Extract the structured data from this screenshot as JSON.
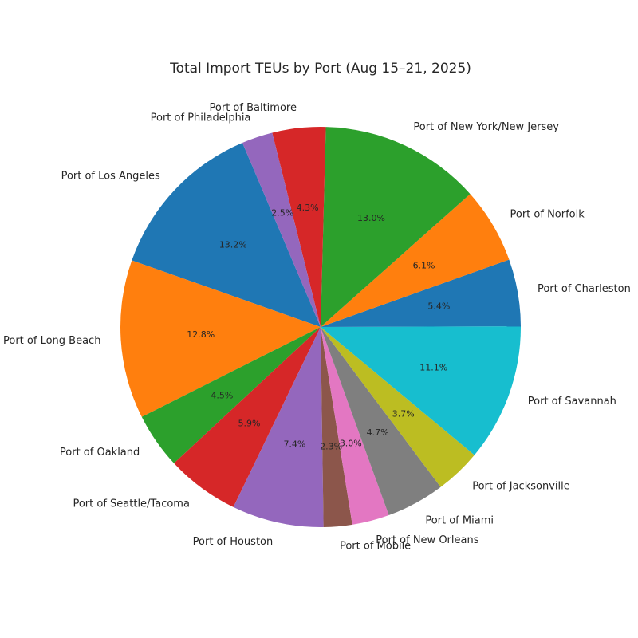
{
  "chart_data": {
    "type": "pie",
    "title": "Total Import TEUs by Port (Aug 15–21, 2025)",
    "start_angle_deg": 113,
    "direction": "counterclockwise",
    "slices": [
      {
        "label": "Port of Los Angeles",
        "percent": 13.2,
        "pct_text": "13.2%",
        "color": "#1f77b4"
      },
      {
        "label": "Port of Long Beach",
        "percent": 12.8,
        "pct_text": "12.8%",
        "color": "#ff7f0e"
      },
      {
        "label": "Port of Oakland",
        "percent": 4.5,
        "pct_text": "4.5%",
        "color": "#2ca02c"
      },
      {
        "label": "Port of Seattle/Tacoma",
        "percent": 5.9,
        "pct_text": "5.9%",
        "color": "#d62728"
      },
      {
        "label": "Port of Houston",
        "percent": 7.4,
        "pct_text": "7.4%",
        "color": "#9467bd"
      },
      {
        "label": "Port of Mobile",
        "percent": 2.3,
        "pct_text": "2.3%",
        "color": "#8c564b"
      },
      {
        "label": "Port of New Orleans",
        "percent": 3.0,
        "pct_text": "3.0%",
        "color": "#e377c2"
      },
      {
        "label": "Port of Miami",
        "percent": 4.7,
        "pct_text": "4.7%",
        "color": "#7f7f7f"
      },
      {
        "label": "Port of Jacksonville",
        "percent": 3.7,
        "pct_text": "3.7%",
        "color": "#bcbd22"
      },
      {
        "label": "Port of Savannah",
        "percent": 11.1,
        "pct_text": "11.1%",
        "color": "#17becf"
      },
      {
        "label": "Port of Charleston",
        "percent": 5.4,
        "pct_text": "5.4%",
        "color": "#1f77b4"
      },
      {
        "label": "Port of Norfolk",
        "percent": 6.1,
        "pct_text": "6.1%",
        "color": "#ff7f0e"
      },
      {
        "label": "Port of New York/New Jersey",
        "percent": 13.0,
        "pct_text": "13.0%",
        "color": "#2ca02c"
      },
      {
        "label": "Port of Baltimore",
        "percent": 4.3,
        "pct_text": "4.3%",
        "color": "#d62728"
      },
      {
        "label": "Port of Philadelphia",
        "percent": 2.5,
        "pct_text": "2.5%",
        "color": "#9467bd"
      }
    ]
  }
}
